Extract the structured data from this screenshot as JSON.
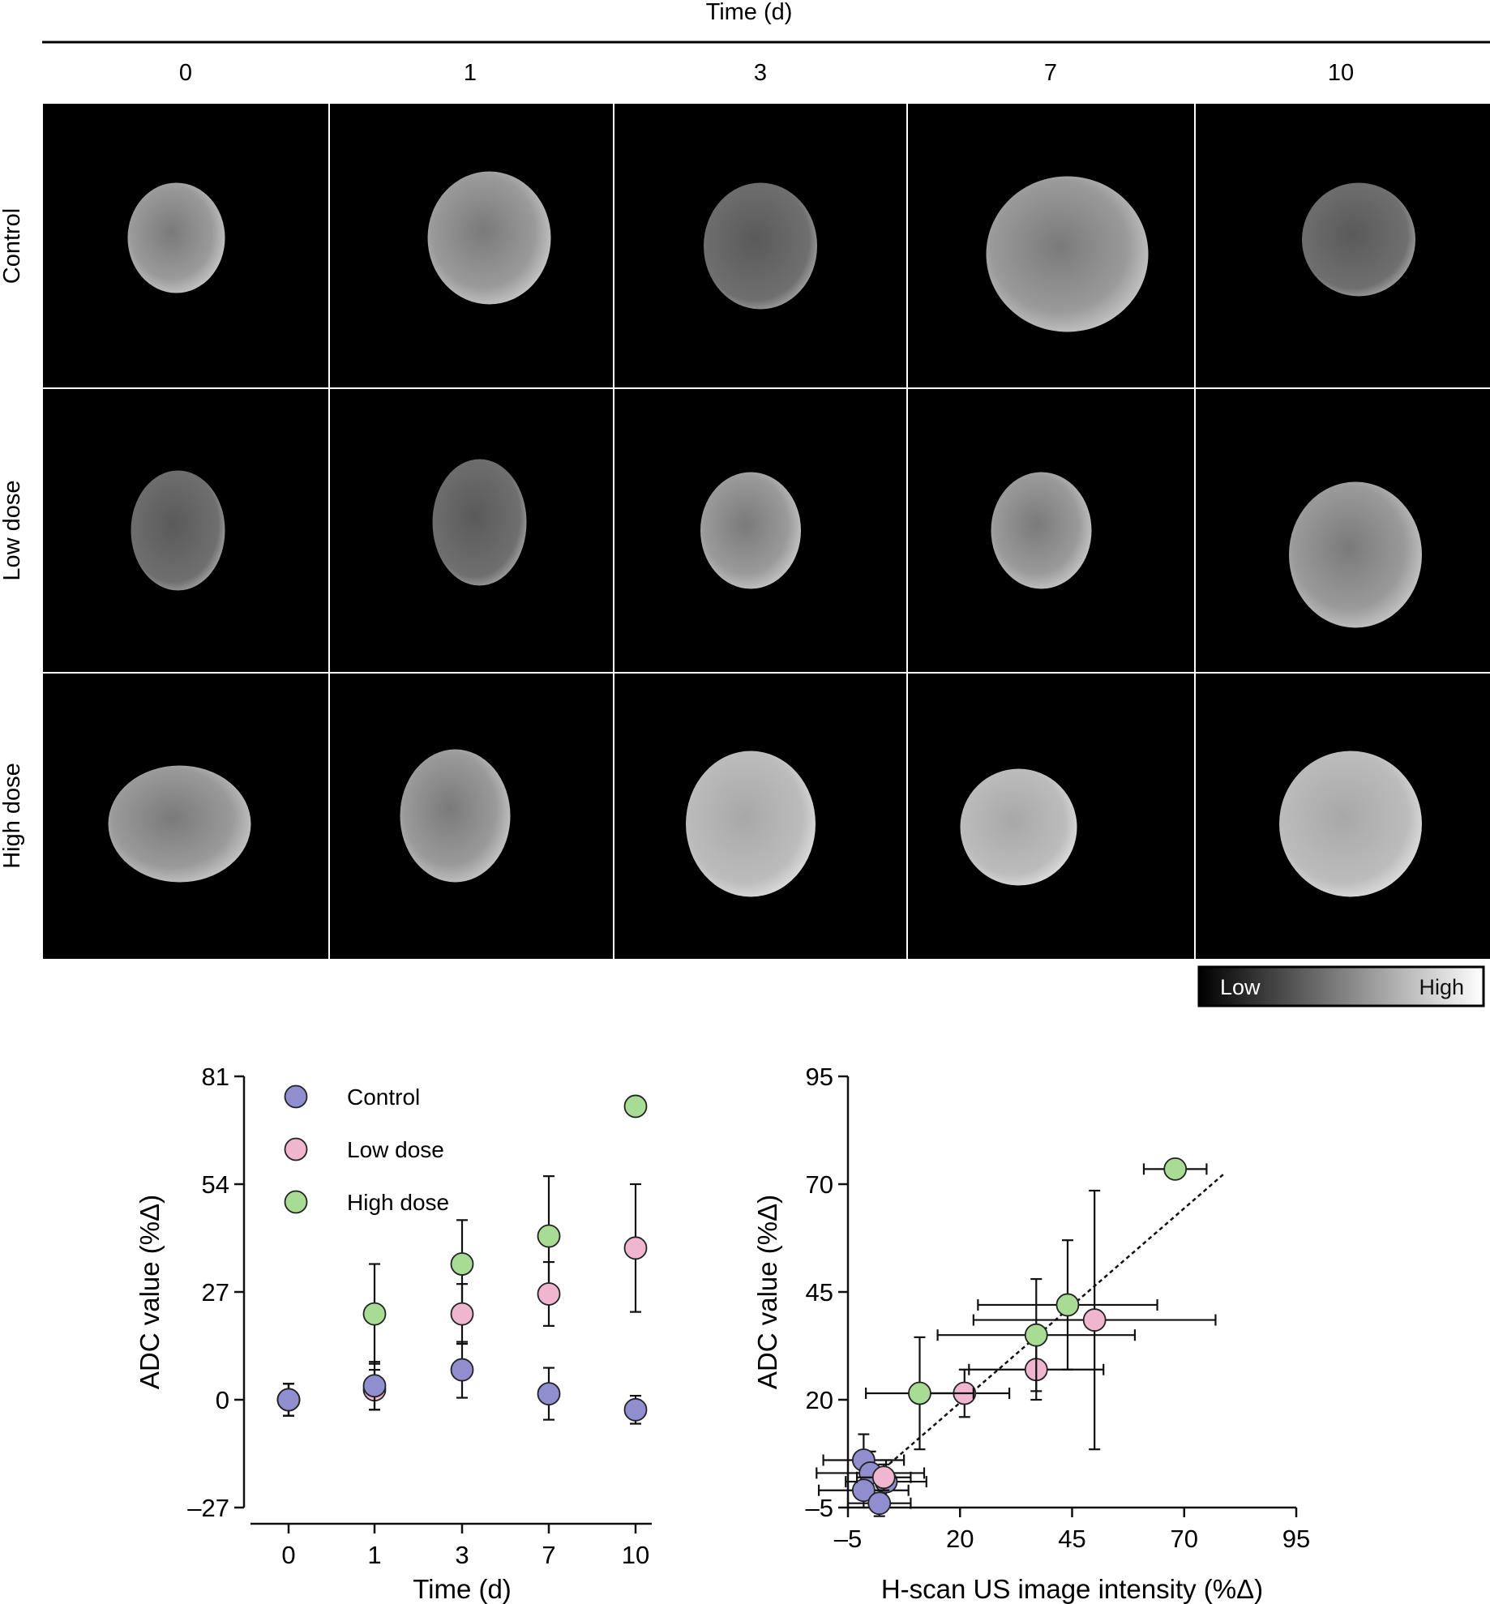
{
  "figure": {
    "time_header": "Time (d)",
    "columns": [
      "0",
      "1",
      "3",
      "7",
      "10"
    ],
    "rows": [
      "Control",
      "Low dose",
      "High dose"
    ],
    "colorbar": {
      "low_label": "Low",
      "high_label": "High"
    }
  },
  "colors": {
    "Control": "#8f8fd0",
    "Low dose": "#f0b6d0",
    "High dose": "#a8dc95"
  },
  "chart_data": [
    {
      "type": "scatter",
      "title": "",
      "xlabel": "Time (d)",
      "ylabel": "ADC value (%Δ)",
      "categories": [
        "0",
        "1",
        "3",
        "7",
        "10"
      ],
      "yticks": [
        "81",
        "54",
        "27",
        "0",
        "–27"
      ],
      "ylim": [
        -27,
        81
      ],
      "legend": "top-left",
      "series": [
        {
          "name": "Control",
          "values": [
            0,
            3.5,
            7.5,
            1.5,
            -2.5
          ],
          "err": [
            4,
            6,
            7,
            6.5,
            3.5
          ]
        },
        {
          "name": "Low dose",
          "values": [
            0,
            2.5,
            21.5,
            26.5,
            38
          ],
          "err": [
            4,
            5,
            7.5,
            8,
            16
          ]
        },
        {
          "name": "High dose",
          "values": [
            0,
            21.5,
            34,
            41,
            73.5
          ],
          "err": [
            4,
            12.5,
            11,
            15,
            2
          ]
        }
      ]
    },
    {
      "type": "scatter",
      "title": "",
      "xlabel": "H-scan US image intensity (%Δ)",
      "ylabel": "ADC value (%Δ)",
      "xticks": [
        "–5",
        "20",
        "45",
        "70",
        "95"
      ],
      "yticks": [
        "95",
        "70",
        "45",
        "20",
        "–5"
      ],
      "xlim": [
        -5,
        95
      ],
      "ylim": [
        -5,
        95
      ],
      "trendline": {
        "x": [
          3,
          79
        ],
        "y": [
          4,
          72.5
        ],
        "style": "dotted"
      },
      "series": [
        {
          "name": "Control",
          "points": [
            {
              "x": -1.5,
              "y": 6,
              "xerr": 9,
              "yerr": 6
            },
            {
              "x": 0,
              "y": 3,
              "xerr": 12,
              "yerr": 5
            },
            {
              "x": 3.5,
              "y": 1,
              "xerr": 9,
              "yerr": 5
            },
            {
              "x": -1.5,
              "y": -1,
              "xerr": 10,
              "yerr": 4
            },
            {
              "x": 2,
              "y": -4,
              "xerr": 7,
              "yerr": 3
            }
          ]
        },
        {
          "name": "Low dose",
          "points": [
            {
              "x": 3,
              "y": 2,
              "xerr": 6,
              "yerr": 3
            },
            {
              "x": 21,
              "y": 21.5,
              "xerr": 10,
              "yerr": 5.5
            },
            {
              "x": 37,
              "y": 27,
              "xerr": 15,
              "yerr": 7
            },
            {
              "x": 50,
              "y": 38.5,
              "xerr": 27,
              "yerr": 30
            }
          ]
        },
        {
          "name": "High dose",
          "points": [
            {
              "x": 11,
              "y": 21.5,
              "xerr": 12,
              "yerr": 13
            },
            {
              "x": 37,
              "y": 35,
              "xerr": 22,
              "yerr": 13
            },
            {
              "x": 44,
              "y": 42,
              "xerr": 20,
              "yerr": 15
            },
            {
              "x": 68,
              "y": 73.5,
              "xerr": 7,
              "yerr": 0
            }
          ]
        }
      ]
    }
  ]
}
